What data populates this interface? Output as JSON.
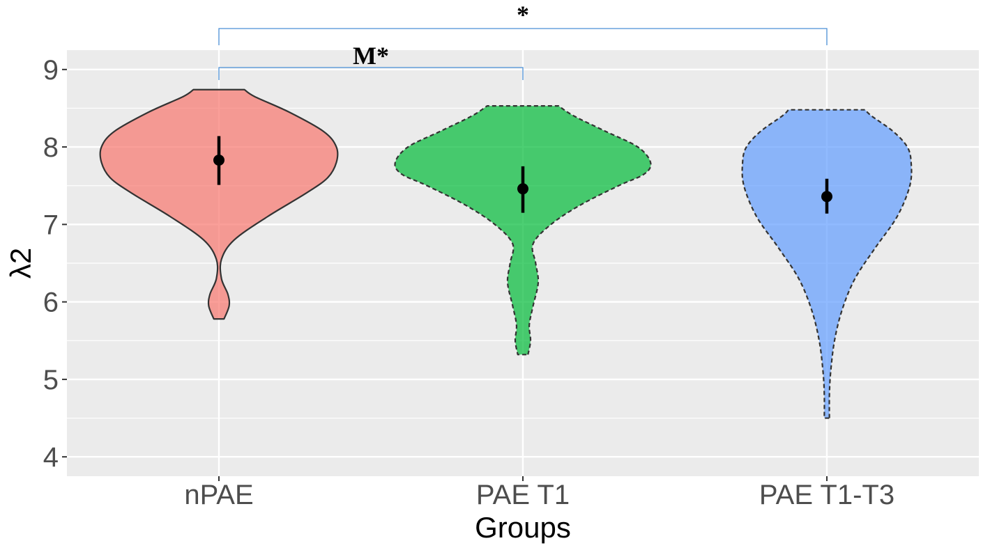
{
  "chart_data": {
    "type": "violin",
    "xlabel": "Groups",
    "ylabel": "λ2",
    "ylim": [
      3.75,
      9.25
    ],
    "yticks": [
      4,
      5,
      6,
      7,
      8,
      9
    ],
    "grid": true,
    "panel_background": "#ebebeb",
    "categories": [
      "nPAE",
      "PAE T1",
      "PAE T1-T3"
    ],
    "groups": [
      {
        "category": "nPAE",
        "color": "#f8766d",
        "outline": "solid",
        "mean": 7.83,
        "error_low": 7.51,
        "error_high": 8.14,
        "range": [
          5.78,
          8.74
        ],
        "density_profile": [
          [
            5.78,
            0.04
          ],
          [
            5.95,
            0.08
          ],
          [
            6.1,
            0.07
          ],
          [
            6.3,
            0.02
          ],
          [
            6.55,
            0.02
          ],
          [
            6.8,
            0.12
          ],
          [
            7.1,
            0.38
          ],
          [
            7.4,
            0.68
          ],
          [
            7.6,
            0.85
          ],
          [
            7.8,
            0.92
          ],
          [
            8.0,
            0.92
          ],
          [
            8.2,
            0.82
          ],
          [
            8.45,
            0.55
          ],
          [
            8.65,
            0.28
          ],
          [
            8.74,
            0.2
          ]
        ]
      },
      {
        "category": "PAE T1",
        "color": "#00ba38",
        "outline": "dashed",
        "mean": 7.46,
        "error_low": 7.15,
        "error_high": 7.75,
        "range": [
          5.32,
          8.53
        ],
        "density_profile": [
          [
            5.32,
            0.04
          ],
          [
            5.5,
            0.06
          ],
          [
            5.7,
            0.05
          ],
          [
            5.95,
            0.08
          ],
          [
            6.25,
            0.12
          ],
          [
            6.5,
            0.1
          ],
          [
            6.75,
            0.08
          ],
          [
            7.0,
            0.22
          ],
          [
            7.25,
            0.45
          ],
          [
            7.5,
            0.75
          ],
          [
            7.65,
            0.95
          ],
          [
            7.8,
            1.0
          ],
          [
            8.0,
            0.9
          ],
          [
            8.2,
            0.65
          ],
          [
            8.4,
            0.4
          ],
          [
            8.53,
            0.28
          ]
        ]
      },
      {
        "category": "PAE T1-T3",
        "color": "#619cff",
        "outline": "dashed",
        "mean": 7.36,
        "error_low": 7.14,
        "error_high": 7.59,
        "range": [
          4.5,
          8.48
        ],
        "density_profile": [
          [
            4.5,
            0.02
          ],
          [
            4.8,
            0.02
          ],
          [
            5.1,
            0.03
          ],
          [
            5.5,
            0.06
          ],
          [
            5.9,
            0.12
          ],
          [
            6.3,
            0.22
          ],
          [
            6.7,
            0.38
          ],
          [
            7.1,
            0.55
          ],
          [
            7.5,
            0.65
          ],
          [
            7.8,
            0.66
          ],
          [
            8.0,
            0.63
          ],
          [
            8.2,
            0.52
          ],
          [
            8.4,
            0.35
          ],
          [
            8.48,
            0.3
          ]
        ]
      }
    ],
    "annotations": [
      {
        "from": "nPAE",
        "to": "PAE T1",
        "label": "M*"
      },
      {
        "from": "nPAE",
        "to": "PAE T1-T3",
        "label": "*"
      }
    ]
  }
}
